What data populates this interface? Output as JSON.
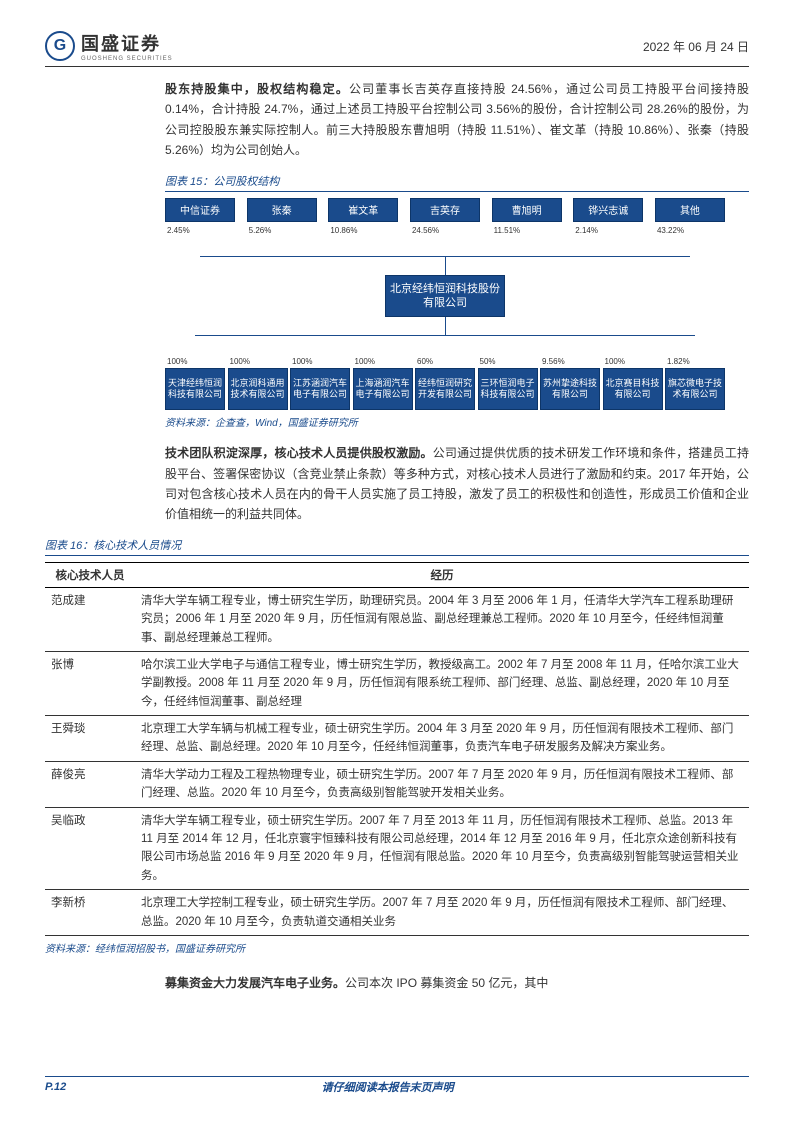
{
  "header": {
    "company_cn": "国盛证券",
    "company_en": "GUOSHENG SECURITIES",
    "date": "2022 年 06 月 24 日"
  },
  "para1": {
    "bold": "股东持股集中，股权结构稳定。",
    "text": "公司董事长吉英存直接持股 24.56%，通过公司员工持股平台间接持股 0.14%，合计持股 24.7%，通过上述员工持股平台控制公司 3.56%的股份，合计控制公司 28.26%的股份，为公司控股股东兼实际控制人。前三大持股股东曹旭明（持股 11.51%）、崔文革（持股 10.86%）、张秦（持股 5.26%）均为公司创始人。"
  },
  "fig15": {
    "caption": "图表 15：公司股权结构",
    "shareholders": [
      {
        "name": "中信证券",
        "pct": "2.45%"
      },
      {
        "name": "张秦",
        "pct": "5.26%"
      },
      {
        "name": "崔文革",
        "pct": "10.86%"
      },
      {
        "name": "吉英存",
        "pct": "24.56%"
      },
      {
        "name": "曹旭明",
        "pct": "11.51%"
      },
      {
        "name": "铧兴志诚",
        "pct": "2.14%"
      },
      {
        "name": "其他",
        "pct": "43.22%"
      }
    ],
    "center": "北京经纬恒润科技股份有限公司",
    "subs": [
      {
        "name": "天津经纬恒润科技有限公司",
        "pct": "100%"
      },
      {
        "name": "北京润科通用技术有限公司",
        "pct": "100%"
      },
      {
        "name": "江苏涵润汽车电子有限公司",
        "pct": "100%"
      },
      {
        "name": "上海涵润汽车电子有限公司",
        "pct": "100%"
      },
      {
        "name": "经纬恒润研究开发有限公司",
        "pct": "60%"
      },
      {
        "name": "三环恒润电子科技有限公司",
        "pct": "50%"
      },
      {
        "name": "苏州挚途科技有限公司",
        "pct": "9.56%"
      },
      {
        "name": "北京赛目科技有限公司",
        "pct": "100%"
      },
      {
        "name": "旗芯微电子技术有限公司",
        "pct": "1.82%"
      }
    ],
    "source": "资料来源：企查查，Wind，国盛证券研究所",
    "colors": {
      "box": "#1a4b8c",
      "line": "#1a4b8c",
      "text": "#ffffff"
    }
  },
  "para2": {
    "bold": "技术团队积淀深厚，核心技术人员提供股权激励。",
    "text": "公司通过提供优质的技术研发工作环境和条件，搭建员工持股平台、签署保密协议（含竞业禁止条款）等多种方式，对核心技术人员进行了激励和约束。2017 年开始，公司对包含核心技术人员在内的骨干人员实施了员工持股，激发了员工的积极性和创造性，形成员工价值和企业价值相统一的利益共同体。"
  },
  "fig16": {
    "caption": "图表 16：核心技术人员情况",
    "col1": "核心技术人员",
    "col2": "经历",
    "rows": [
      {
        "name": "范成建",
        "bio": "清华大学车辆工程专业，博士研究生学历，助理研究员。2004 年 3 月至 2006 年 1 月，任清华大学汽车工程系助理研究员；2006 年 1 月至 2020 年 9 月，历任恒润有限总监、副总经理兼总工程师。2020 年 10 月至今，任经纬恒润董事、副总经理兼总工程师。"
      },
      {
        "name": "张博",
        "bio": "哈尔滨工业大学电子与通信工程专业，博士研究生学历，教授级高工。2002 年 7 月至 2008 年 11 月，任哈尔滨工业大学副教授。2008 年 11 月至 2020 年 9 月，历任恒润有限系统工程师、部门经理、总监、副总经理，2020 年 10 月至今，任经纬恒润董事、副总经理"
      },
      {
        "name": "王舜琰",
        "bio": "北京理工大学车辆与机械工程专业，硕士研究生学历。2004 年 3 月至 2020 年 9 月，历任恒润有限技术工程师、部门经理、总监、副总经理。2020 年 10 月至今，任经纬恒润董事，负责汽车电子研发服务及解决方案业务。"
      },
      {
        "name": "薛俊亮",
        "bio": "清华大学动力工程及工程热物理专业，硕士研究生学历。2007 年 7 月至 2020 年 9 月，历任恒润有限技术工程师、部门经理、总监。2020 年 10 月至今，负责高级别智能驾驶开发相关业务。"
      },
      {
        "name": "吴临政",
        "bio": "清华大学车辆工程专业，硕士研究生学历。2007 年 7 月至 2013 年 11 月，历任恒润有限技术工程师、总监。2013 年 11 月至 2014 年 12 月，任北京寰宇恒臻科技有限公司总经理，2014 年 12 月至 2016 年 9 月，任北京众途创新科技有限公司市场总监 2016 年 9 月至 2020 年 9 月，任恒润有限总监。2020 年 10 月至今，负责高级别智能驾驶运营相关业务。"
      },
      {
        "name": "李新桥",
        "bio": "北京理工大学控制工程专业，硕士研究生学历。2007 年 7 月至 2020 年 9 月，历任恒润有限技术工程师、部门经理、总监。2020 年 10 月至今，负责轨道交通相关业务"
      }
    ],
    "source": "资料来源：经纬恒润招股书，国盛证券研究所"
  },
  "para3": {
    "bold": "募集资金大力发展汽车电子业务。",
    "text": "公司本次 IPO 募集资金 50 亿元，其中"
  },
  "footer": {
    "page": "P.12",
    "disclaimer": "请仔细阅读本报告末页声明"
  }
}
